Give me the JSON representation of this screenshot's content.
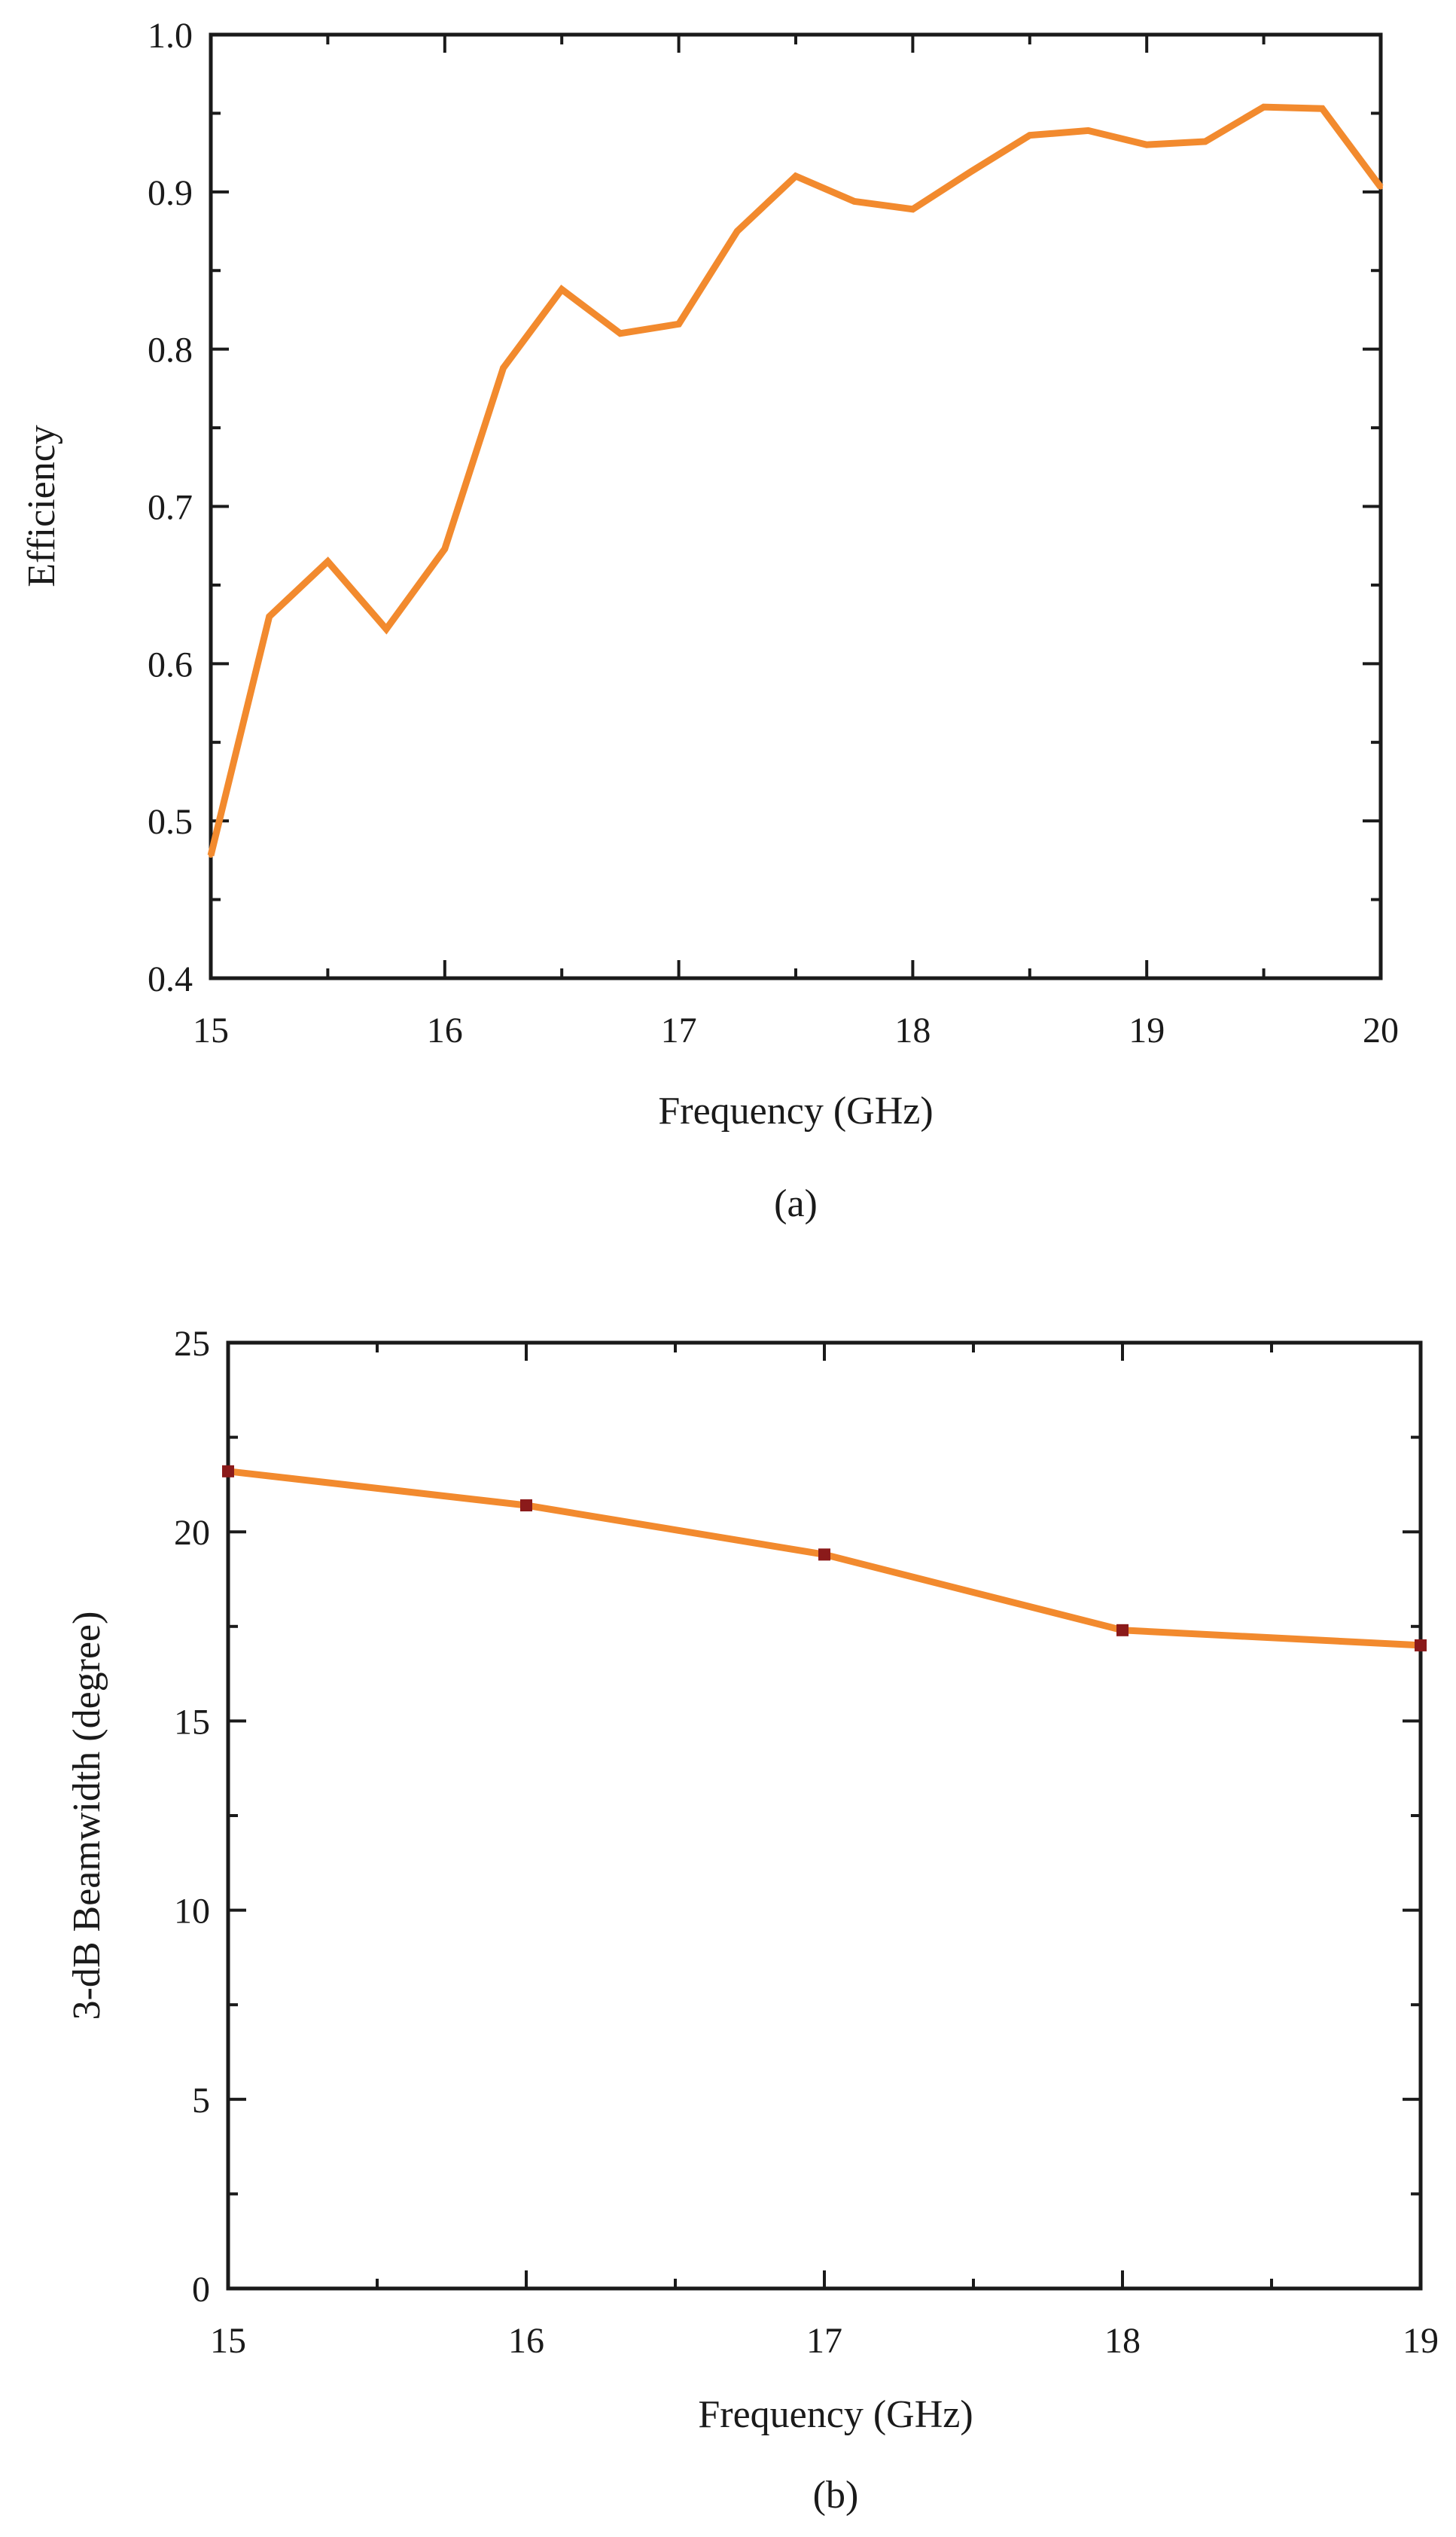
{
  "charts": [
    {
      "type": "line",
      "caption": "(a)",
      "xlabel": "Frequency (GHz)",
      "ylabel": "Efficiency",
      "line_color": "#f28a2e",
      "marker_color": "#8b1a1a",
      "show_markers": false,
      "xlim": [
        15,
        20
      ],
      "ylim": [
        0.4,
        1.0
      ],
      "x_ticks": [
        15,
        16,
        17,
        18,
        19,
        20
      ],
      "x_tick_labels": [
        "15",
        "16",
        "17",
        "18",
        "19",
        "20"
      ],
      "y_ticks": [
        0.4,
        0.5,
        0.6,
        0.7,
        0.8,
        0.9,
        1.0
      ],
      "y_tick_labels": [
        "0.4",
        "0.5",
        "0.6",
        "0.7",
        "0.8",
        "0.9",
        "1.0"
      ],
      "x_minor_ticks": [
        15.5,
        16.5,
        17.5,
        18.5,
        19.5
      ],
      "y_minor_ticks": [
        0.45,
        0.55,
        0.65,
        0.75,
        0.85,
        0.95
      ],
      "series": [
        {
          "name": "Efficiency",
          "x": [
            15,
            15.25,
            15.5,
            15.75,
            16,
            16.25,
            16.5,
            16.75,
            17,
            17.25,
            17.5,
            17.75,
            18,
            18.25,
            18.5,
            18.75,
            19,
            19.25,
            19.5,
            19.75,
            20
          ],
          "y": [
            0.478,
            0.63,
            0.665,
            0.622,
            0.673,
            0.788,
            0.838,
            0.81,
            0.816,
            0.875,
            0.91,
            0.894,
            0.889,
            0.913,
            0.936,
            0.939,
            0.93,
            0.932,
            0.954,
            0.953,
            0.903
          ]
        }
      ]
    },
    {
      "type": "line",
      "caption": "(b)",
      "xlabel": "Frequency (GHz)",
      "ylabel": "3-dB Beamwidth (degree)",
      "line_color": "#f28a2e",
      "marker_color": "#8b1a1a",
      "show_markers": true,
      "xlim": [
        15,
        19
      ],
      "ylim": [
        0,
        25
      ],
      "x_ticks": [
        15,
        16,
        17,
        18,
        19
      ],
      "x_tick_labels": [
        "15",
        "16",
        "17",
        "18",
        "19"
      ],
      "y_ticks": [
        0,
        5,
        10,
        15,
        20,
        25
      ],
      "y_tick_labels": [
        "0",
        "5",
        "10",
        "15",
        "20",
        "25"
      ],
      "x_minor_ticks": [
        15.5,
        16.5,
        17.5,
        18.5
      ],
      "y_minor_ticks": [
        2.5,
        7.5,
        12.5,
        17.5,
        22.5
      ],
      "series": [
        {
          "name": "3-dB Beamwidth",
          "x": [
            15,
            16,
            17,
            18,
            19
          ],
          "y": [
            21.6,
            20.7,
            19.4,
            17.4,
            17.0
          ]
        }
      ]
    }
  ]
}
